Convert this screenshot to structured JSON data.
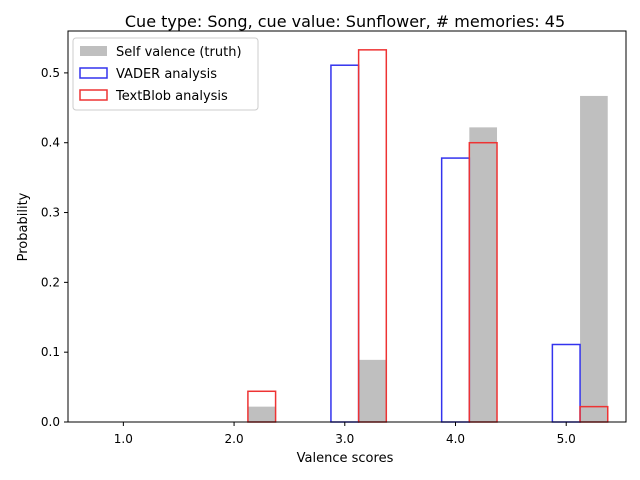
{
  "chart_data": {
    "type": "bar",
    "title": "Cue type: Song, cue value: Sunflower, # memories: 45",
    "xlabel": "Valence scores",
    "ylabel": "Probability",
    "categories": [
      "1.0",
      "2.0",
      "3.0",
      "4.0",
      "5.0"
    ],
    "x": [
      1.0,
      2.0,
      3.0,
      4.0,
      5.0
    ],
    "xlim": [
      0.5,
      5.54
    ],
    "ylim": [
      0,
      0.56
    ],
    "yticks": [
      0.0,
      0.1,
      0.2,
      0.3,
      0.4,
      0.5
    ],
    "ytick_labels": [
      "0.0",
      "0.1",
      "0.2",
      "0.3",
      "0.4",
      "0.5"
    ],
    "grid": false,
    "legend_position": "top-left",
    "series": [
      {
        "name": "Self valence (truth)",
        "style": "filled",
        "color": "#bfbfbf",
        "offset": 0.25,
        "values": [
          0.0,
          0.022,
          0.089,
          0.422,
          0.467
        ]
      },
      {
        "name": "VADER analysis",
        "style": "outline",
        "color": "#3333ee",
        "offset": 0.0,
        "values": [
          0.0,
          0.0,
          0.511,
          0.378,
          0.111
        ]
      },
      {
        "name": "TextBlob analysis",
        "style": "outline",
        "color": "#ee3333",
        "offset": 0.25,
        "values": [
          0.0,
          0.044,
          0.533,
          0.4,
          0.022
        ]
      }
    ]
  }
}
